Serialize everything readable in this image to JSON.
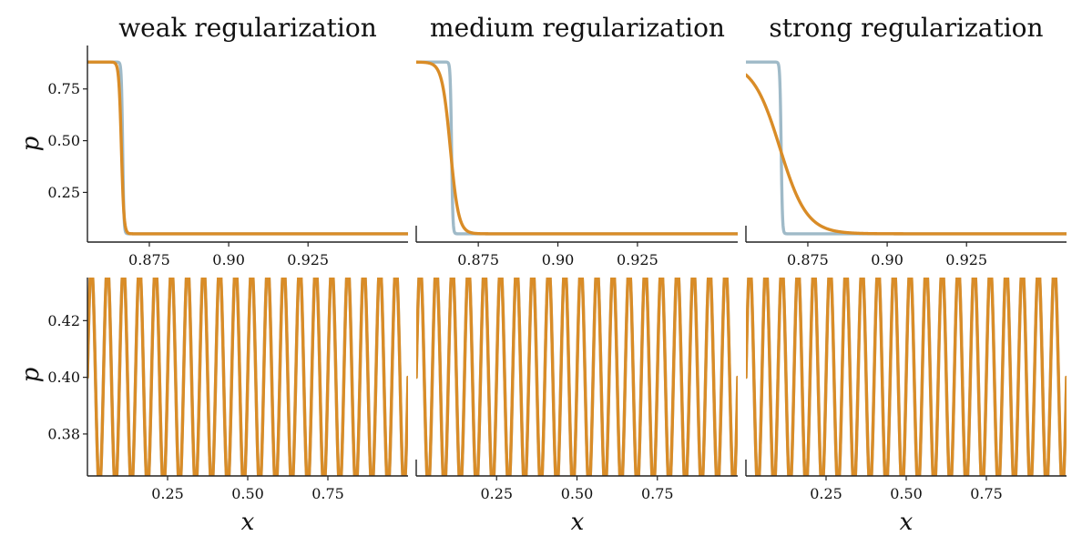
{
  "colors": {
    "reference": "#9fbac8",
    "regularized": "#d98c27",
    "axis": "#222222"
  },
  "chart_data": [
    {
      "type": "line",
      "row": "top",
      "title": "weak regularization",
      "ylabel": "p",
      "xlabel": "",
      "xlim": [
        0.8555,
        0.9565
      ],
      "ylim": [
        0.01,
        0.96
      ],
      "xticks": [
        0.875,
        0.9,
        0.925
      ],
      "xticklabels": [
        "0.875",
        "0.90",
        "0.925"
      ],
      "yticks": [
        0.25,
        0.5,
        0.75
      ],
      "yticklabels": [
        "0.25",
        "0.50",
        "0.75"
      ],
      "series": [
        {
          "color_key": "reference",
          "kind": "step",
          "x0": 0.8666,
          "width": 0.0004,
          "high": 0.88,
          "low": 0.05
        },
        {
          "color_key": "regularized",
          "kind": "tanh",
          "x0": 0.8662,
          "width": 0.0008,
          "high": 0.88,
          "low": 0.05
        }
      ]
    },
    {
      "type": "line",
      "row": "top",
      "title": "medium regularization",
      "ylabel": "",
      "xlabel": "",
      "xlim": [
        0.8555,
        0.9565
      ],
      "ylim": [
        0.01,
        0.96
      ],
      "xticks": [
        0.875,
        0.9,
        0.925
      ],
      "xticklabels": [
        "0.875",
        "0.90",
        "0.925"
      ],
      "yticks": [],
      "yticklabels": [],
      "series": [
        {
          "color_key": "reference",
          "kind": "step",
          "x0": 0.8666,
          "width": 0.0004,
          "high": 0.88,
          "low": 0.05
        },
        {
          "color_key": "regularized",
          "kind": "tanh",
          "x0": 0.8662,
          "width": 0.0026,
          "high": 0.88,
          "low": 0.05
        }
      ]
    },
    {
      "type": "line",
      "row": "top",
      "title": "strong regularization",
      "ylabel": "",
      "xlabel": "",
      "xlim": [
        0.8555,
        0.9565
      ],
      "ylim": [
        0.01,
        0.96
      ],
      "xticks": [
        0.875,
        0.9,
        0.925
      ],
      "xticklabels": [
        "0.875",
        "0.90",
        "0.925"
      ],
      "yticks": [],
      "yticklabels": [],
      "series": [
        {
          "color_key": "reference",
          "kind": "step",
          "x0": 0.8666,
          "width": 0.0004,
          "high": 0.88,
          "low": 0.05
        },
        {
          "color_key": "regularized",
          "kind": "tanh",
          "x0": 0.8662,
          "width": 0.0085,
          "high": 0.88,
          "low": 0.05
        }
      ]
    },
    {
      "type": "line",
      "row": "bottom",
      "title": "",
      "ylabel": "p",
      "xlabel": "x",
      "xlim": [
        0.0,
        1.0
      ],
      "ylim": [
        0.3652,
        0.4352
      ],
      "xticks": [
        0.25,
        0.5,
        0.75
      ],
      "xticklabels": [
        "0.25",
        "0.50",
        "0.75"
      ],
      "yticks": [
        0.38,
        0.4,
        0.42
      ],
      "yticklabels": [
        "0.38",
        "0.40",
        "0.42"
      ],
      "series": [
        {
          "color_key": "reference",
          "kind": "sine",
          "mean": 0.4,
          "amplitude": 0.04,
          "cycles": 20
        },
        {
          "color_key": "regularized",
          "kind": "sine",
          "mean": 0.4,
          "amplitude": 0.04,
          "cycles": 20
        }
      ]
    },
    {
      "type": "line",
      "row": "bottom",
      "title": "",
      "ylabel": "",
      "xlabel": "x",
      "xlim": [
        0.0,
        1.0
      ],
      "ylim": [
        0.3652,
        0.4352
      ],
      "xticks": [
        0.25,
        0.5,
        0.75
      ],
      "xticklabels": [
        "0.25",
        "0.50",
        "0.75"
      ],
      "yticks": [],
      "yticklabels": [],
      "series": [
        {
          "color_key": "reference",
          "kind": "sine",
          "mean": 0.4,
          "amplitude": 0.04,
          "cycles": 20
        },
        {
          "color_key": "regularized",
          "kind": "sine",
          "mean": 0.4,
          "amplitude": 0.04,
          "cycles": 20
        }
      ]
    },
    {
      "type": "line",
      "row": "bottom",
      "title": "",
      "ylabel": "",
      "xlabel": "x",
      "xlim": [
        0.0,
        1.0
      ],
      "ylim": [
        0.3652,
        0.4352
      ],
      "xticks": [
        0.25,
        0.5,
        0.75
      ],
      "xticklabels": [
        "0.25",
        "0.50",
        "0.75"
      ],
      "yticks": [],
      "yticklabels": [],
      "series": [
        {
          "color_key": "reference",
          "kind": "sine",
          "mean": 0.4,
          "amplitude": 0.04,
          "cycles": 20
        },
        {
          "color_key": "regularized",
          "kind": "sine",
          "mean": 0.4,
          "amplitude": 0.04,
          "cycles": 20
        }
      ]
    }
  ]
}
